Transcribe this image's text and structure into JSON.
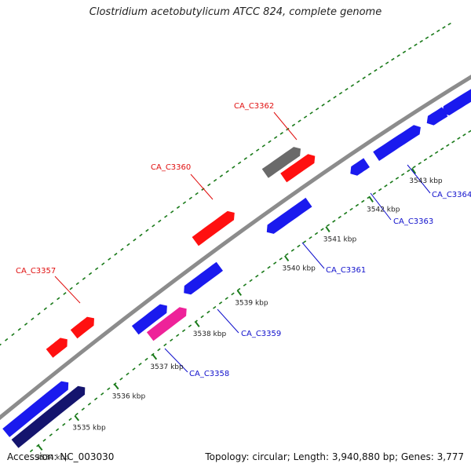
{
  "title": "Clostridium acetobutylicum ATCC 824, complete genome",
  "footer": {
    "accession": "Accession: NC_003030",
    "summary": "Topology: circular; Length: 3,940,880 bp; Genes: 3,777"
  },
  "colors": {
    "backbone": "#8c8c8c",
    "dots": "#1a7a1a",
    "forward_label": "#e01010",
    "reverse_label": "#1010cc",
    "forward_gene": "#ff1010",
    "reverse_gene": "#1a1aee",
    "dark_gene": "#14146e",
    "gray_gene": "#6a6a6a",
    "pink_gene": "#ee2299"
  },
  "tick_labels": [
    "3534 kbp",
    "3535 kbp",
    "3536 kbp",
    "3537 kbp",
    "3538 kbp",
    "3539 kbp",
    "3540 kbp",
    "3541 kbp",
    "3542 kbp",
    "3543 kbp"
  ],
  "gene_labels": [
    {
      "name": "CA_C3357",
      "strand": "forward"
    },
    {
      "name": "CA_C3360",
      "strand": "forward"
    },
    {
      "name": "CA_C3362",
      "strand": "forward"
    },
    {
      "name": "CA_C3358",
      "strand": "reverse"
    },
    {
      "name": "CA_C3359",
      "strand": "reverse"
    },
    {
      "name": "CA_C3361",
      "strand": "reverse"
    },
    {
      "name": "CA_C3363",
      "strand": "reverse"
    },
    {
      "name": "CA_C3364",
      "strand": "reverse"
    }
  ]
}
